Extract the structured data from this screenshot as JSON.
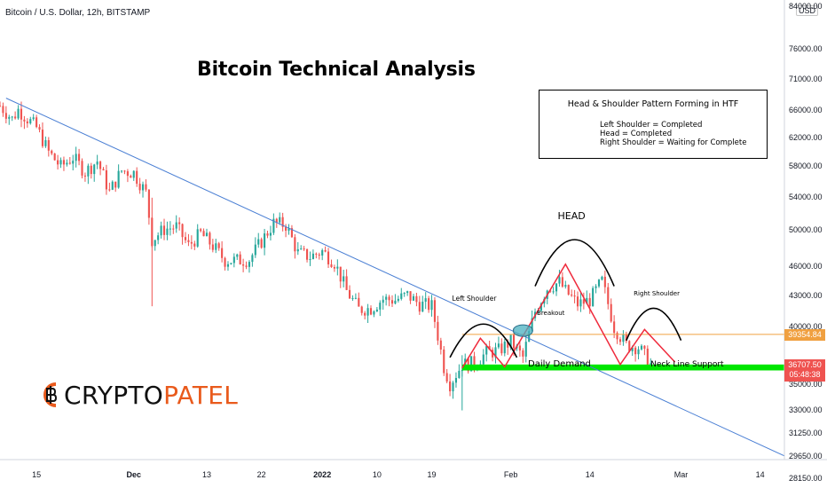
{
  "header": {
    "pair_title": "Bitcoin / U.S. Dollar, 12h, BITSTAMP",
    "currency": "USD"
  },
  "title": "Bitcoin Technical Analysis",
  "info_box": {
    "heading": "Head & Shoulder Pattern Forming in HTF",
    "lines": [
      "Left Shoulder = Completed",
      "Head = Completed",
      "Right Shoulder = Waiting for Complete"
    ]
  },
  "logo": {
    "text_dark": "CRYPTO",
    "text_accent": "PATEL"
  },
  "colors": {
    "up": "#26a69a",
    "down": "#ef5350",
    "trendline": "#4a7fd4",
    "pattern": "#ef2a3c",
    "resistance": "#f0a040",
    "demand": "#00e600",
    "logo_accent": "#e95a1c"
  },
  "annotations": {
    "head": "HEAD",
    "left_shoulder": "Left Shoulder",
    "right_shoulder": "Right Shoulder",
    "breakout": "Breakout",
    "daily_demand": "Daily Demand",
    "neck_line": "Neck Line Support"
  },
  "price_tags": {
    "resistance": "39354.84",
    "last_price": "36707.50",
    "countdown": "05:48:38"
  },
  "chart_data": {
    "type": "candlestick",
    "scale": "log",
    "y_ticks": [
      "84000.00",
      "76000.00",
      "71000.00",
      "66000.00",
      "62000.00",
      "58000.00",
      "54000.00",
      "50000.00",
      "46000.00",
      "43000.00",
      "40000.00",
      "35000.00",
      "33000.00",
      "31250.00",
      "29650.00",
      "28150.00"
    ],
    "y_tick_values": [
      84000,
      76000,
      71000,
      66000,
      62000,
      58000,
      54000,
      50000,
      46000,
      43000,
      40000,
      35000,
      33000,
      31250,
      29650,
      28150
    ],
    "x_ticks": [
      "15",
      "Dec",
      "13",
      "22",
      "2022",
      "10",
      "19",
      "Feb",
      "14",
      "Mar",
      "14"
    ],
    "x_tick_bold": [
      false,
      true,
      false,
      false,
      true,
      false,
      false,
      false,
      false,
      false,
      false
    ],
    "x_tick_dates": [
      "2021-11-15",
      "2021-12-01",
      "2021-12-13",
      "2021-12-22",
      "2022-01-01",
      "2022-01-10",
      "2022-01-19",
      "2022-02-01",
      "2022-02-14",
      "2022-03-01",
      "2022-03-14"
    ],
    "date_start": "2021-11-09",
    "date_end": "2022-03-18",
    "series_close": [
      [
        "2021-11-09",
        66800
      ],
      [
        "2021-11-11",
        64800
      ],
      [
        "2021-11-12",
        66200
      ],
      [
        "2021-11-15",
        63500
      ],
      [
        "2021-11-17",
        60000
      ],
      [
        "2021-11-19",
        58000
      ],
      [
        "2021-11-21",
        59300
      ],
      [
        "2021-11-23",
        57300
      ],
      [
        "2021-11-25",
        58800
      ],
      [
        "2021-11-27",
        54700
      ],
      [
        "2021-11-29",
        57500
      ],
      [
        "2021-12-01",
        57200
      ],
      [
        "2021-12-03",
        54600
      ],
      [
        "2021-12-04",
        49000
      ],
      [
        "2021-12-06",
        50200
      ],
      [
        "2021-12-08",
        50500
      ],
      [
        "2021-12-10",
        48300
      ],
      [
        "2021-12-12",
        49700
      ],
      [
        "2021-12-14",
        48300
      ],
      [
        "2021-12-16",
        46700
      ],
      [
        "2021-12-18",
        46700
      ],
      [
        "2021-12-20",
        46800
      ],
      [
        "2021-12-22",
        48800
      ],
      [
        "2021-12-24",
        50900
      ],
      [
        "2021-12-26",
        50700
      ],
      [
        "2021-12-28",
        47500
      ],
      [
        "2021-12-30",
        47100
      ],
      [
        "2022-01-01",
        47700
      ],
      [
        "2022-01-03",
        46500
      ],
      [
        "2022-01-05",
        43500
      ],
      [
        "2022-01-07",
        41700
      ],
      [
        "2022-01-09",
        41800
      ],
      [
        "2022-01-11",
        42700
      ],
      [
        "2022-01-13",
        42600
      ],
      [
        "2022-01-15",
        43100
      ],
      [
        "2022-01-17",
        42200
      ],
      [
        "2022-01-19",
        42000
      ],
      [
        "2022-01-21",
        36500
      ],
      [
        "2022-01-22",
        35100
      ],
      [
        "2022-01-24",
        36700
      ],
      [
        "2022-01-26",
        36800
      ],
      [
        "2022-01-28",
        37700
      ],
      [
        "2022-01-30",
        37900
      ],
      [
        "2022-02-01",
        38700
      ],
      [
        "2022-02-03",
        37300
      ],
      [
        "2022-02-05",
        41500
      ],
      [
        "2022-02-07",
        43800
      ],
      [
        "2022-02-09",
        44400
      ],
      [
        "2022-02-10",
        43500
      ],
      [
        "2022-02-12",
        42200
      ],
      [
        "2022-02-14",
        42600
      ],
      [
        "2022-02-16",
        44500
      ],
      [
        "2022-02-18",
        40000
      ],
      [
        "2022-02-20",
        38400
      ],
      [
        "2022-02-22",
        38200
      ],
      [
        "2022-02-24",
        36707
      ]
    ],
    "series": [
      {
        "name": "Head & Shoulder path (drawn)",
        "points": [
          [
            "2022-01-24",
            36400
          ],
          [
            "2022-01-27",
            39000
          ],
          [
            "2022-01-31",
            36500
          ],
          [
            "2022-02-10",
            46300
          ],
          [
            "2022-02-19",
            36700
          ],
          [
            "2022-02-23",
            39800
          ],
          [
            "2022-02-28",
            36900
          ]
        ]
      },
      {
        "name": "Descending trendline",
        "points": [
          [
            "2021-11-10",
            68000
          ],
          [
            "2022-03-18",
            29700
          ]
        ]
      }
    ],
    "levels": {
      "resistance": 39354.84,
      "demand_low": 36200,
      "demand_high": 36700
    },
    "ylim": [
      27800,
      85000
    ]
  }
}
